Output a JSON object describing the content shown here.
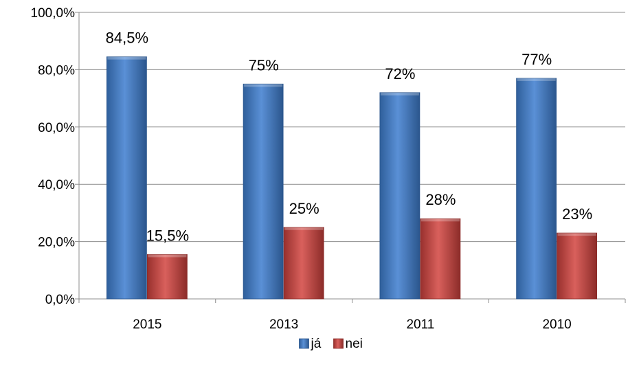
{
  "chart_data": {
    "type": "bar",
    "title": "",
    "xlabel": "",
    "ylabel": "",
    "categories": [
      "2015",
      "2013",
      "2011",
      "2010"
    ],
    "series": [
      {
        "name": "já",
        "values": [
          84.5,
          75,
          72,
          77
        ],
        "labels": [
          "84,5%",
          "75%",
          "72%",
          "77%"
        ],
        "color": "#4a7ebb"
      },
      {
        "name": "nei",
        "values": [
          15.5,
          25,
          28,
          23
        ],
        "labels": [
          "15,5%",
          "25%",
          "28%",
          "23%"
        ],
        "color": "#be4b48"
      }
    ],
    "ylim": [
      0,
      100
    ],
    "yticks": [
      0,
      20,
      40,
      60,
      80,
      100
    ],
    "ytick_labels": [
      "0,0%",
      "20,0%",
      "40,0%",
      "60,0%",
      "80,0%",
      "100,0%"
    ],
    "grid": true,
    "legend_position": "bottom"
  }
}
